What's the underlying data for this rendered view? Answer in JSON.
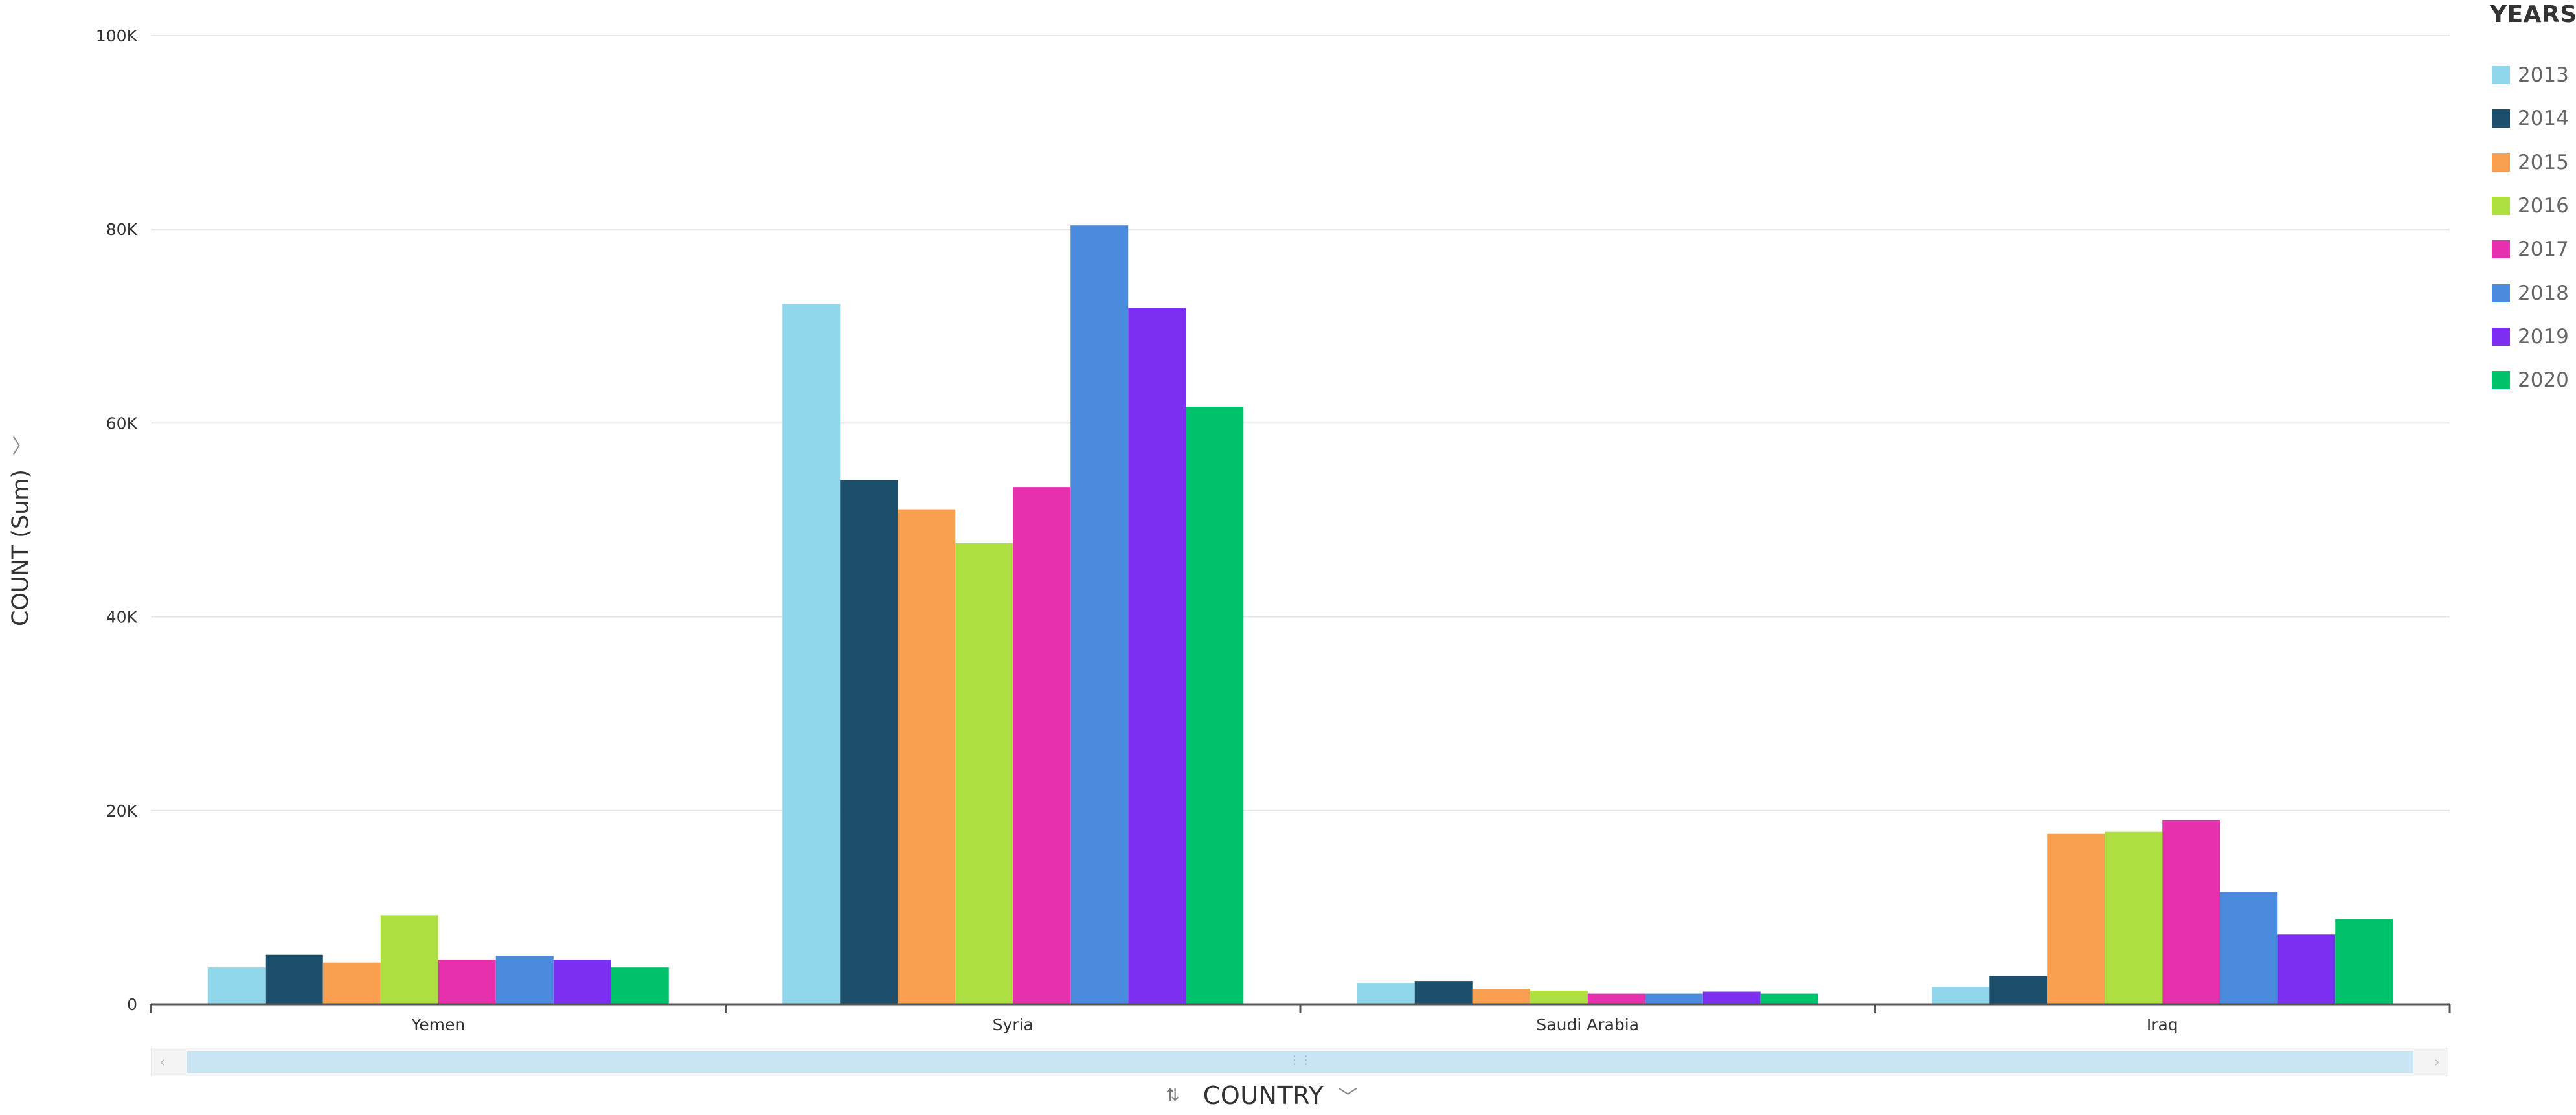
{
  "chart_data": {
    "type": "bar",
    "categories": [
      "Yemen",
      "Syria",
      "Saudi Arabia",
      "Iraq"
    ],
    "series": [
      {
        "name": "2013",
        "color": "#8fd6eb",
        "values": [
          3800,
          72300,
          2200,
          1800
        ]
      },
      {
        "name": "2014",
        "color": "#1b4f6b",
        "values": [
          5100,
          54100,
          2400,
          2900
        ]
      },
      {
        "name": "2015",
        "color": "#f9a050",
        "values": [
          4300,
          51100,
          1600,
          17600
        ]
      },
      {
        "name": "2016",
        "color": "#acdf3f",
        "values": [
          9200,
          47600,
          1400,
          17800
        ]
      },
      {
        "name": "2017",
        "color": "#e730ae",
        "values": [
          4600,
          53400,
          1100,
          19000
        ]
      },
      {
        "name": "2018",
        "color": "#4a8bdd",
        "values": [
          5000,
          80400,
          1100,
          11600
        ]
      },
      {
        "name": "2019",
        "color": "#7c2ff1",
        "values": [
          4600,
          71900,
          1300,
          7200
        ]
      },
      {
        "name": "2020",
        "color": "#00c26b",
        "values": [
          3800,
          61700,
          1100,
          8800
        ]
      }
    ],
    "ylim": [
      0,
      100000
    ],
    "y_ticks": [
      0,
      20000,
      40000,
      60000,
      80000,
      100000
    ],
    "y_tick_labels": [
      "0",
      "20K",
      "40K",
      "60K",
      "80K",
      "100K"
    ],
    "xlabel": "COUNT­RY",
    "ylabel": "COUNT (Sum)",
    "legend_title": "YEARS",
    "legend_position": "top-right",
    "grid": true
  },
  "ui": {
    "x_title": "COUNTRY",
    "y_title": "COUNT (Sum)",
    "legend_title": "YEARS",
    "sort_icon": "sort-za-icon",
    "chevron_icon": "chevron-down-icon"
  }
}
